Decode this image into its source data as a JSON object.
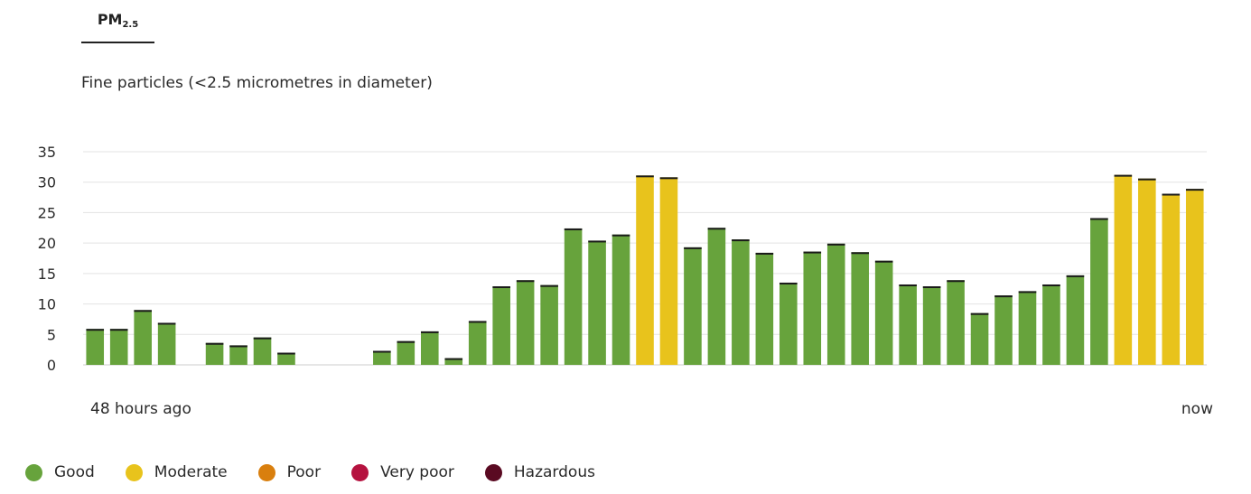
{
  "tab": {
    "label": "PM",
    "subscript": "2.5"
  },
  "subtitle": "Fine particles (<2.5 micrometres in diameter)",
  "chart_data": {
    "type": "bar",
    "title": "Fine particles (<2.5 micrometres in diameter)",
    "xlabel": "",
    "ylabel": "",
    "ylim": [
      0,
      35
    ],
    "yticks": [
      0,
      5,
      10,
      15,
      20,
      25,
      30,
      35
    ],
    "grid": true,
    "x_start_label": "48 hours ago",
    "x_end_label": "now",
    "values": [
      5.9,
      5.9,
      9.0,
      6.9,
      null,
      3.6,
      3.2,
      4.5,
      2.0,
      null,
      null,
      null,
      2.3,
      3.9,
      5.5,
      1.1,
      7.2,
      12.9,
      13.9,
      13.1,
      22.4,
      20.4,
      21.4,
      31.1,
      30.8,
      19.3,
      22.5,
      20.6,
      18.4,
      13.5,
      18.6,
      19.9,
      18.5,
      17.1,
      13.2,
      12.9,
      13.9,
      8.5,
      11.4,
      12.1,
      13.2,
      14.7,
      24.1,
      31.2,
      30.6,
      28.1,
      28.9
    ],
    "categories": [
      "Good",
      "Good",
      "Good",
      "Good",
      "",
      "Good",
      "Good",
      "Good",
      "Good",
      "",
      "",
      "",
      "Good",
      "Good",
      "Good",
      "Good",
      "Good",
      "Good",
      "Good",
      "Good",
      "Good",
      "Good",
      "Good",
      "Moderate",
      "Moderate",
      "Good",
      "Good",
      "Good",
      "Good",
      "Good",
      "Good",
      "Good",
      "Good",
      "Good",
      "Good",
      "Good",
      "Good",
      "Good",
      "Good",
      "Good",
      "Good",
      "Good",
      "Good",
      "Moderate",
      "Moderate",
      "Moderate",
      "Moderate"
    ]
  },
  "legend": [
    {
      "label": "Good",
      "color": "#67a33c"
    },
    {
      "label": "Moderate",
      "color": "#e8c31c"
    },
    {
      "label": "Poor",
      "color": "#d97f0e"
    },
    {
      "label": "Very poor",
      "color": "#b5123f"
    },
    {
      "label": "Hazardous",
      "color": "#5a0a22"
    }
  ]
}
